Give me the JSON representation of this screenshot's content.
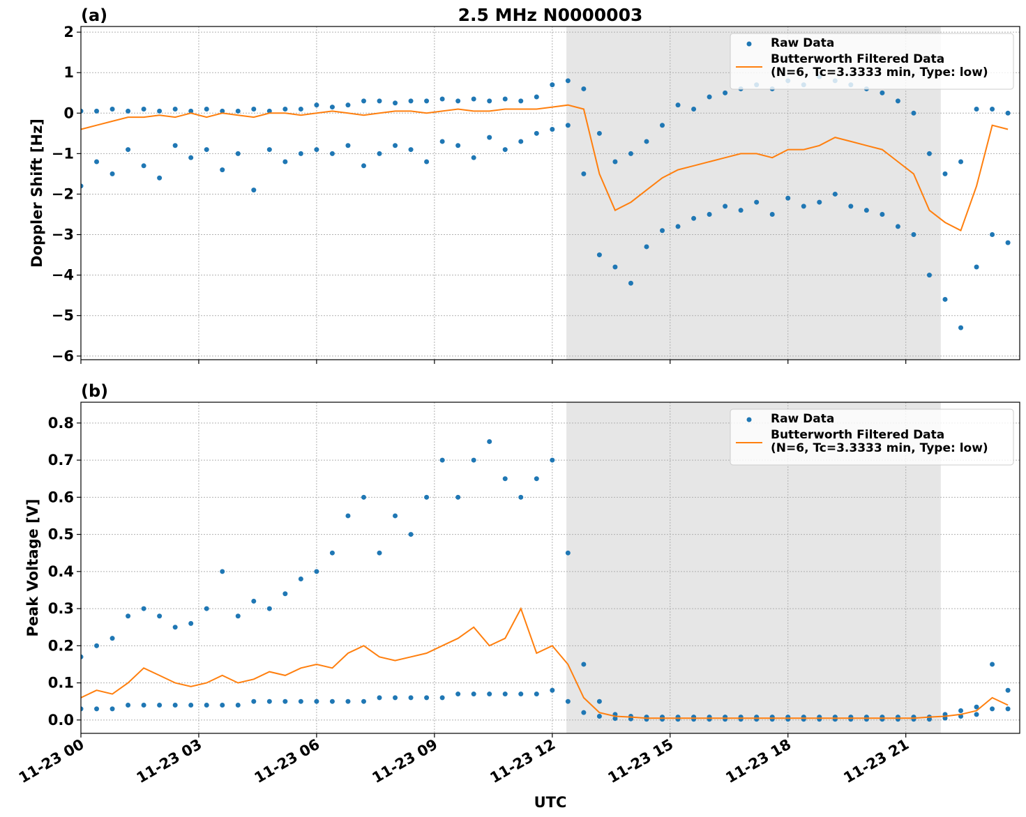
{
  "chart_data": [
    {
      "type": "scatter-line",
      "title": "2.5 MHz N0000003",
      "panel_label": "(a)",
      "y_label": "Doppler Shift [Hz]",
      "xlim": [
        0,
        23.9
      ],
      "xticks": [
        0,
        3,
        6,
        9,
        12,
        15,
        18,
        21
      ],
      "ylim": [
        -6.09,
        2.14
      ],
      "yticks": [
        {
          "value": -6,
          "label": "−6"
        },
        {
          "value": -5,
          "label": "−5"
        },
        {
          "value": -4,
          "label": "−4"
        },
        {
          "value": -3,
          "label": "−3"
        },
        {
          "value": -2,
          "label": "−2"
        },
        {
          "value": -1,
          "label": "−1"
        },
        0,
        1,
        2
      ],
      "grid": true,
      "legend": "upper right",
      "span": [
        12.36,
        21.89
      ],
      "span_color": "#e6e6e6",
      "x": [
        0,
        0.4,
        0.8,
        1.2,
        1.6,
        2,
        2.4,
        2.8,
        3.2,
        3.6,
        4,
        4.4,
        4.8,
        5.2,
        5.6,
        6,
        6.4,
        6.8,
        7.2,
        7.6,
        8,
        8.4,
        8.8,
        9.2,
        9.6,
        10,
        10.4,
        10.8,
        11.2,
        11.6,
        12,
        12.4,
        12.8,
        13.2,
        13.6,
        14,
        14.4,
        14.8,
        15.2,
        15.6,
        16,
        16.4,
        16.8,
        17.2,
        17.6,
        18,
        18.4,
        18.8,
        19.2,
        19.6,
        20,
        20.4,
        20.8,
        21.2,
        21.6,
        22,
        22.4,
        22.8,
        23.2,
        23.6
      ],
      "series": [
        {
          "name": "Raw Data",
          "color": "#1f77b4",
          "values": [
            [
              0.05,
              -1.8
            ],
            [
              0.05,
              -1.2
            ],
            [
              0.1,
              -1.5
            ],
            [
              0.05,
              -0.9
            ],
            [
              0.1,
              -1.3
            ],
            [
              0.05,
              -1.6
            ],
            [
              0.1,
              -0.8
            ],
            [
              0.05,
              -1.1
            ],
            [
              0.1,
              -0.9
            ],
            [
              0.05,
              -1.4
            ],
            [
              0.05,
              -1.0
            ],
            [
              0.1,
              -1.9
            ],
            [
              0.05,
              -0.9
            ],
            [
              0.1,
              -1.2
            ],
            [
              0.1,
              -1.0
            ],
            [
              0.2,
              -0.9
            ],
            [
              0.15,
              -1.0
            ],
            [
              0.2,
              -0.8
            ],
            [
              0.3,
              -1.3
            ],
            [
              0.3,
              -1.0
            ],
            [
              0.25,
              -0.8
            ],
            [
              0.3,
              -0.9
            ],
            [
              0.3,
              -1.2
            ],
            [
              0.35,
              -0.7
            ],
            [
              0.3,
              -0.8
            ],
            [
              0.35,
              -1.1
            ],
            [
              0.3,
              -0.6
            ],
            [
              0.35,
              -0.9
            ],
            [
              0.3,
              -0.7
            ],
            [
              0.4,
              -0.5
            ],
            [
              0.7,
              -0.4
            ],
            [
              0.8,
              -0.3
            ],
            [
              0.6,
              -1.5
            ],
            [
              -0.5,
              -3.5
            ],
            [
              -1.2,
              -3.8
            ],
            [
              -1.0,
              -4.2
            ],
            [
              -0.7,
              -3.3
            ],
            [
              -0.3,
              -2.9
            ],
            [
              0.2,
              -2.8
            ],
            [
              0.1,
              -2.6
            ],
            [
              0.4,
              -2.5
            ],
            [
              0.5,
              -2.3
            ],
            [
              0.6,
              -2.4
            ],
            [
              0.7,
              -2.2
            ],
            [
              0.6,
              -2.5
            ],
            [
              0.8,
              -2.1
            ],
            [
              0.7,
              -2.3
            ],
            [
              0.9,
              -2.2
            ],
            [
              0.8,
              -2.0
            ],
            [
              0.7,
              -2.3
            ],
            [
              0.6,
              -2.4
            ],
            [
              0.5,
              -2.5
            ],
            [
              0.3,
              -2.8
            ],
            [
              0.0,
              -3.0
            ],
            [
              -1.0,
              -4.0
            ],
            [
              -1.5,
              -4.6
            ],
            [
              -1.2,
              -5.3
            ],
            [
              0.1,
              -3.8
            ],
            [
              0.1,
              -3.0
            ],
            [
              0.0,
              -3.2
            ]
          ]
        },
        {
          "name": "Butterworth Filtered Data\n(N=6, Tc=3.3333 min, Type: low)",
          "color": "#ff7f0e",
          "values": [
            -0.4,
            -0.3,
            -0.2,
            -0.1,
            -0.1,
            -0.05,
            -0.1,
            0,
            -0.1,
            0,
            -0.05,
            -0.1,
            0,
            0,
            -0.05,
            0,
            0.05,
            0,
            -0.05,
            0,
            0.05,
            0.05,
            0,
            0.05,
            0.1,
            0.05,
            0.05,
            0.1,
            0.1,
            0.1,
            0.15,
            0.2,
            0.1,
            -1.5,
            -2.4,
            -2.2,
            -1.9,
            -1.6,
            -1.4,
            -1.3,
            -1.2,
            -1.1,
            -1.0,
            -1.0,
            -1.1,
            -0.9,
            -0.9,
            -0.8,
            -0.6,
            -0.7,
            -0.8,
            -0.9,
            -1.2,
            -1.5,
            -2.4,
            -2.7,
            -2.9,
            -1.8,
            -0.3,
            -0.4
          ]
        }
      ]
    },
    {
      "type": "scatter-line",
      "panel_label": "(b)",
      "y_label": "Peak Voltage [V]",
      "x_label": "UTC",
      "xlim": [
        0,
        23.9
      ],
      "xticks": [
        {
          "value": 0,
          "label": "11-23 00"
        },
        {
          "value": 3,
          "label": "11-23 03"
        },
        {
          "value": 6,
          "label": "11-23 06"
        },
        {
          "value": 9,
          "label": "11-23 09"
        },
        {
          "value": 12,
          "label": "11-23 12"
        },
        {
          "value": 15,
          "label": "11-23 15"
        },
        {
          "value": 18,
          "label": "11-23 18"
        },
        {
          "value": 21,
          "label": "11-23 21"
        }
      ],
      "ylim": [
        -0.036,
        0.856
      ],
      "yticks": [
        {
          "value": 0,
          "label": "0.0"
        },
        0.1,
        0.2,
        0.3,
        0.4,
        0.5,
        0.6,
        0.7,
        0.8
      ],
      "grid": true,
      "legend": "upper right",
      "span": [
        12.36,
        21.89
      ],
      "span_color": "#e6e6e6",
      "x": [
        0,
        0.4,
        0.8,
        1.2,
        1.6,
        2,
        2.4,
        2.8,
        3.2,
        3.6,
        4,
        4.4,
        4.8,
        5.2,
        5.6,
        6,
        6.4,
        6.8,
        7.2,
        7.6,
        8,
        8.4,
        8.8,
        9.2,
        9.6,
        10,
        10.4,
        10.8,
        11.2,
        11.6,
        12,
        12.4,
        12.8,
        13.2,
        13.6,
        14,
        14.4,
        14.8,
        15.2,
        15.6,
        16,
        16.4,
        16.8,
        17.2,
        17.6,
        18,
        18.4,
        18.8,
        19.2,
        19.6,
        20,
        20.4,
        20.8,
        21.2,
        21.6,
        22,
        22.4,
        22.8,
        23.2,
        23.6
      ],
      "series": [
        {
          "name": "Raw Data",
          "color": "#1f77b4",
          "values": [
            [
              0.17,
              0.03
            ],
            [
              0.2,
              0.03
            ],
            [
              0.22,
              0.03
            ],
            [
              0.28,
              0.04
            ],
            [
              0.3,
              0.04
            ],
            [
              0.28,
              0.04
            ],
            [
              0.25,
              0.04
            ],
            [
              0.26,
              0.04
            ],
            [
              0.3,
              0.04
            ],
            [
              0.4,
              0.04
            ],
            [
              0.28,
              0.04
            ],
            [
              0.32,
              0.05
            ],
            [
              0.3,
              0.05
            ],
            [
              0.34,
              0.05
            ],
            [
              0.38,
              0.05
            ],
            [
              0.4,
              0.05
            ],
            [
              0.45,
              0.05
            ],
            [
              0.55,
              0.05
            ],
            [
              0.6,
              0.05
            ],
            [
              0.45,
              0.06
            ],
            [
              0.55,
              0.06
            ],
            [
              0.5,
              0.06
            ],
            [
              0.6,
              0.06
            ],
            [
              0.7,
              0.06
            ],
            [
              0.6,
              0.07
            ],
            [
              0.7,
              0.07
            ],
            [
              0.75,
              0.07
            ],
            [
              0.65,
              0.07
            ],
            [
              0.6,
              0.07
            ],
            [
              0.65,
              0.07
            ],
            [
              0.7,
              0.08
            ],
            [
              0.45,
              0.05
            ],
            [
              0.15,
              0.02
            ],
            [
              0.05,
              0.01
            ],
            [
              0.015,
              0.004
            ],
            [
              0.01,
              0.003
            ],
            [
              0.008,
              0.002
            ],
            [
              0.008,
              0.002
            ],
            [
              0.008,
              0.002
            ],
            [
              0.008,
              0.002
            ],
            [
              0.008,
              0.002
            ],
            [
              0.008,
              0.002
            ],
            [
              0.008,
              0.002
            ],
            [
              0.008,
              0.002
            ],
            [
              0.008,
              0.002
            ],
            [
              0.008,
              0.002
            ],
            [
              0.008,
              0.002
            ],
            [
              0.008,
              0.002
            ],
            [
              0.008,
              0.002
            ],
            [
              0.008,
              0.002
            ],
            [
              0.008,
              0.002
            ],
            [
              0.008,
              0.002
            ],
            [
              0.008,
              0.002
            ],
            [
              0.008,
              0.002
            ],
            [
              0.008,
              0.002
            ],
            [
              0.015,
              0.005
            ],
            [
              0.025,
              0.01
            ],
            [
              0.035,
              0.015
            ],
            [
              0.15,
              0.03
            ],
            [
              0.08,
              0.03
            ]
          ]
        },
        {
          "name": "Butterworth Filtered Data\n(N=6, Tc=3.3333 min, Type: low)",
          "color": "#ff7f0e",
          "values": [
            0.06,
            0.08,
            0.07,
            0.1,
            0.14,
            0.12,
            0.1,
            0.09,
            0.1,
            0.12,
            0.1,
            0.11,
            0.13,
            0.12,
            0.14,
            0.15,
            0.14,
            0.18,
            0.2,
            0.17,
            0.16,
            0.17,
            0.18,
            0.2,
            0.22,
            0.25,
            0.2,
            0.22,
            0.3,
            0.18,
            0.2,
            0.15,
            0.06,
            0.02,
            0.01,
            0.008,
            0.005,
            0.005,
            0.005,
            0.005,
            0.005,
            0.005,
            0.005,
            0.005,
            0.005,
            0.005,
            0.005,
            0.005,
            0.005,
            0.005,
            0.005,
            0.005,
            0.005,
            0.005,
            0.008,
            0.01,
            0.015,
            0.025,
            0.06,
            0.04
          ]
        }
      ]
    }
  ]
}
